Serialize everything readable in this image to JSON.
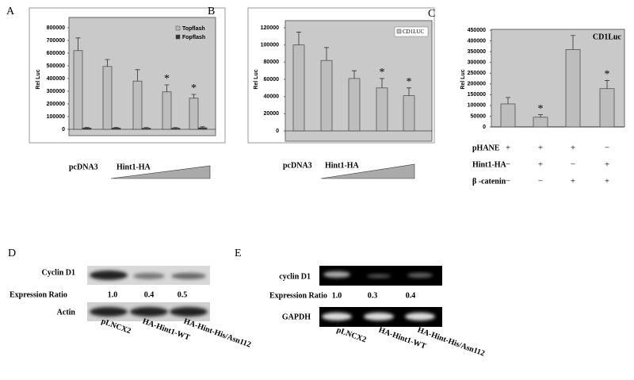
{
  "chart_data": [
    {
      "type": "bar",
      "label": "A",
      "y_label": "Rel Luc",
      "categories": [
        null,
        null,
        null,
        null,
        null
      ],
      "series": [
        {
          "name": "Topflash",
          "color": "#bdbdbd",
          "values": [
            620000,
            495000,
            380000,
            295000,
            245000
          ],
          "errors": [
            100000,
            55000,
            90000,
            55000,
            30000
          ]
        },
        {
          "name": "Fopflash",
          "color": "#333333",
          "values": [
            10000,
            10000,
            9000,
            9000,
            12000
          ],
          "errors": [
            5000,
            5000,
            5000,
            5000,
            8000
          ]
        }
      ],
      "significance": [
        null,
        null,
        null,
        "*",
        "*"
      ],
      "ylim": [
        0,
        800000
      ],
      "yticks": [
        0,
        100000,
        200000,
        300000,
        400000,
        500000,
        600000,
        700000,
        800000
      ],
      "xlabels": [
        "pcDNA3",
        "Hint1-HA"
      ]
    },
    {
      "type": "bar",
      "label": "B",
      "y_label": "Rel Luc",
      "categories": [
        null,
        null,
        null,
        null,
        null
      ],
      "series": [
        {
          "name": "CD1LUC",
          "color": "#bdbdbd",
          "values": [
            100000,
            82000,
            61000,
            50000,
            41000
          ],
          "errors": [
            15000,
            15000,
            9000,
            11000,
            9000
          ]
        }
      ],
      "significance": [
        null,
        null,
        null,
        "*",
        "*"
      ],
      "ylim": [
        0,
        120000
      ],
      "yticks": [
        0,
        20000,
        40000,
        60000,
        80000,
        100000,
        120000
      ],
      "xlabels": [
        "pcDNA3",
        "Hint1-HA"
      ]
    },
    {
      "type": "bar",
      "label": "C",
      "y_label": "Rel Luc",
      "categories": [
        null,
        null,
        null,
        null
      ],
      "series": [
        {
          "name": "CD1Luc",
          "color": "#bdbdbd",
          "values": [
            107000,
            45000,
            360000,
            178000
          ],
          "errors": [
            30000,
            12000,
            65000,
            38000
          ]
        }
      ],
      "significance": [
        null,
        "*",
        null,
        "*"
      ],
      "ylim": [
        0,
        450000
      ],
      "yticks": [
        0,
        50000,
        100000,
        150000,
        200000,
        250000,
        300000,
        350000,
        400000,
        450000
      ],
      "conditions": [
        {
          "label": "pHANE",
          "values": [
            "+",
            "+",
            "+",
            "−"
          ]
        },
        {
          "label": "Hint1-HA",
          "values": [
            "−",
            "+",
            "−",
            "+"
          ]
        },
        {
          "label": "β -catenin",
          "values": [
            "−",
            "−",
            "+",
            "+"
          ]
        }
      ]
    }
  ],
  "blots": [
    {
      "label": "D",
      "top_row": "Cyclin D1",
      "ratio_label": "Expression Ratio",
      "ratios": [
        "1.0",
        "0.4",
        "0.5"
      ],
      "bottom_row": "Actin",
      "lanes": [
        "pLNCX2",
        "HA-Hint1-WT",
        "HA-Hint-His/Asn112"
      ]
    },
    {
      "label": "E",
      "top_row": "cyclin D1",
      "ratio_label": "Expression Ratio",
      "ratios": [
        "1.0",
        "0.3",
        "0.4"
      ],
      "bottom_row": "GAPDH",
      "lanes": [
        "pLNCX2",
        "HA-Hint1-WT",
        "HA-Hint-His/Asn112"
      ]
    }
  ]
}
